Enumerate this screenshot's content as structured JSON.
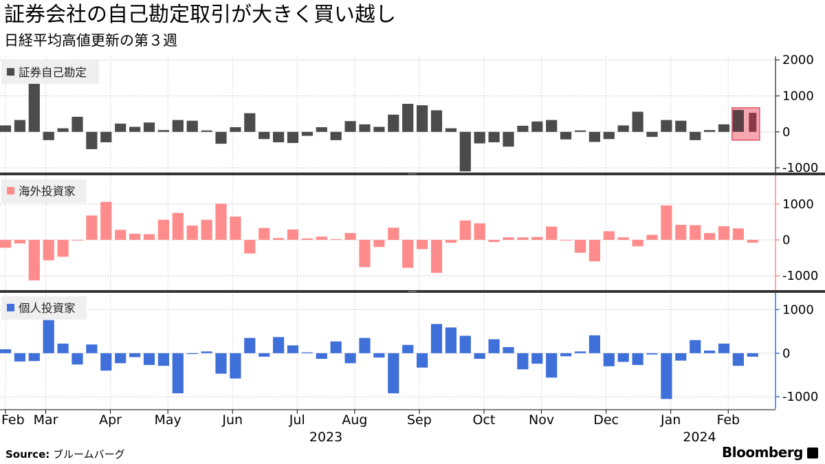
{
  "title": "証券会社の自己勘定取引が大きく買い越し",
  "subtitle": "日経平均高値更新の第３週",
  "source_label": "Source:",
  "source_text": "ブルームバーグ",
  "brand": "Bloomberg",
  "chart_data": [
    {
      "type": "bar",
      "name": "証券自己勘定",
      "color": "#4b4b4b",
      "highlight_color": "#f7a7b2",
      "ylim": [
        -1150,
        2100
      ],
      "yticks": [
        2000,
        1000,
        0,
        -1000
      ],
      "ytick_labels": [
        "2000",
        "1000",
        "0",
        "-1000"
      ],
      "highlight_last": true,
      "values": [
        180,
        330,
        1450,
        -230,
        100,
        420,
        -480,
        -290,
        230,
        140,
        260,
        50,
        330,
        310,
        40,
        -330,
        130,
        520,
        -200,
        -290,
        -310,
        -110,
        130,
        -230,
        300,
        210,
        140,
        480,
        780,
        740,
        600,
        100,
        -1100,
        -320,
        -290,
        -410,
        170,
        290,
        330,
        -210,
        40,
        -280,
        -200,
        180,
        560,
        -140,
        330,
        310,
        -230,
        50,
        210,
        610,
        530
      ]
    },
    {
      "type": "bar",
      "name": "海外投資家",
      "color": "#ff8c8c",
      "ylim": [
        -1400,
        1800
      ],
      "yticks": [
        1000,
        0,
        -1000
      ],
      "ytick_labels": [
        "1000",
        "0",
        "-1000"
      ],
      "values": [
        -220,
        -100,
        -1130,
        -570,
        -470,
        0,
        680,
        1060,
        280,
        170,
        160,
        560,
        750,
        400,
        560,
        1010,
        650,
        -380,
        330,
        50,
        290,
        40,
        90,
        20,
        190,
        -760,
        -200,
        340,
        -780,
        -260,
        -920,
        -80,
        540,
        460,
        -60,
        70,
        70,
        80,
        370,
        0,
        -360,
        -600,
        240,
        70,
        -180,
        140,
        960,
        420,
        410,
        190,
        380,
        320,
        -80
      ]
    },
    {
      "type": "bar",
      "name": "個人投資家",
      "color": "#3f6fd9",
      "ylim": [
        -1280,
        1400
      ],
      "yticks": [
        1000,
        0,
        -1000
      ],
      "ytick_labels": [
        "1000",
        "0",
        "-1000"
      ],
      "values": [
        90,
        -190,
        -180,
        760,
        220,
        -260,
        200,
        -400,
        -230,
        -90,
        -270,
        -290,
        -920,
        -20,
        40,
        -470,
        -580,
        350,
        -80,
        370,
        180,
        20,
        -130,
        270,
        -230,
        350,
        -100,
        -920,
        190,
        -330,
        670,
        590,
        400,
        -130,
        320,
        140,
        -370,
        -240,
        -560,
        -70,
        40,
        410,
        -300,
        -200,
        -270,
        -30,
        -1050,
        -170,
        300,
        60,
        220,
        -290,
        -80
      ]
    }
  ],
  "x_axis": {
    "months": [
      {
        "label": "Feb",
        "index": 0
      },
      {
        "label": "Mar",
        "index": 2.8
      },
      {
        "label": "Apr",
        "index": 7.3
      },
      {
        "label": "May",
        "index": 11.3
      },
      {
        "label": "Jun",
        "index": 15.8
      },
      {
        "label": "Jul",
        "index": 20.3
      },
      {
        "label": "Aug",
        "index": 24.3
      },
      {
        "label": "Sep",
        "index": 28.8
      },
      {
        "label": "Oct",
        "index": 33.3
      },
      {
        "label": "Nov",
        "index": 37.3
      },
      {
        "label": "Dec",
        "index": 41.8
      },
      {
        "label": "Jan",
        "index": 46.3
      },
      {
        "label": "Feb",
        "index": 50.3
      }
    ],
    "years": [
      {
        "label": "2023",
        "index": 22.3
      },
      {
        "label": "2024",
        "index": 48.3
      }
    ]
  }
}
